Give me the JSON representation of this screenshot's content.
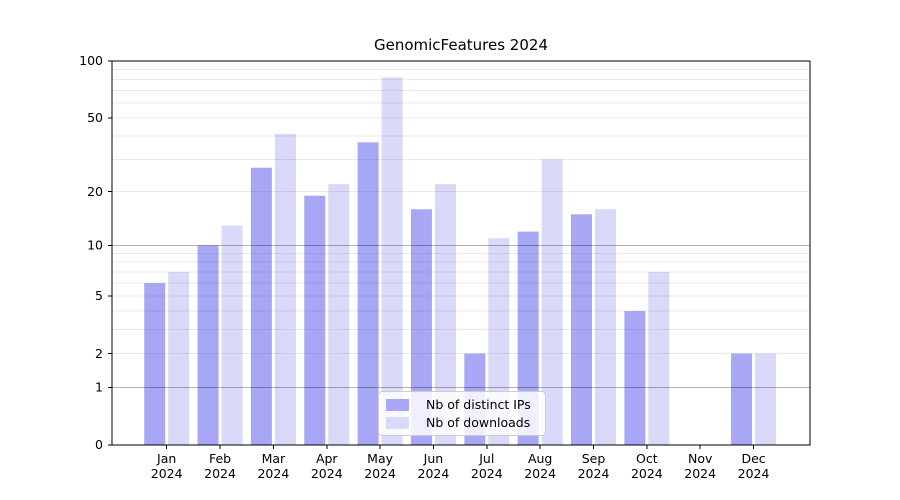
{
  "chart_data": {
    "type": "bar",
    "title": "GenomicFeatures 2024",
    "categories": [
      "Jan",
      "Feb",
      "Mar",
      "Apr",
      "May",
      "Jun",
      "Jul",
      "Aug",
      "Sep",
      "Oct",
      "Nov",
      "Dec"
    ],
    "year_label": "2024",
    "series": [
      {
        "name": "Nb of distinct IPs",
        "color": "#a7a7f6",
        "values": [
          6,
          10,
          27,
          19,
          37,
          16,
          2,
          12,
          15,
          4,
          0,
          2
        ]
      },
      {
        "name": "Nb of downloads",
        "color": "#d9d9f9",
        "values": [
          7,
          13,
          41,
          22,
          82,
          22,
          11,
          30,
          16,
          7,
          0,
          2
        ]
      }
    ],
    "yscale": "log1p",
    "ylim": [
      0,
      100
    ],
    "yticks": [
      0,
      1,
      2,
      5,
      10,
      20,
      50,
      100
    ],
    "y_major_grid": [
      1,
      10
    ],
    "y_minor_grid": [
      2,
      3,
      4,
      5,
      6,
      7,
      8,
      9,
      20,
      30,
      40,
      50,
      60,
      70,
      80,
      90
    ],
    "grid": true,
    "legend_position": "lower center"
  },
  "colors": {
    "background": "#ffffff",
    "axis": "#000000",
    "tick_label": "#000000",
    "grid_major": "rgba(0,0,0,0.30)",
    "grid_minor": "rgba(0,0,0,0.08)",
    "legend_border": "#cccccc"
  }
}
